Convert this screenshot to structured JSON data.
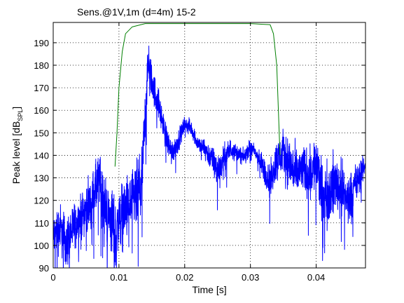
{
  "chart_data": {
    "type": "line",
    "title": "Sens.@1V,1m (d=4m)   15-2",
    "xlabel": "Time [s]",
    "ylabel_main": "Peak level [dB",
    "ylabel_sub": "SPL",
    "ylabel_end": "]",
    "xlim": [
      0,
      0.0475
    ],
    "ylim": [
      90,
      199
    ],
    "grid": true,
    "xticks": [
      0,
      0.01,
      0.02,
      0.03,
      0.04
    ],
    "xtick_labels": [
      "0",
      "0.01",
      "0.02",
      "0.03",
      "0.04"
    ],
    "yticks": [
      90,
      100,
      110,
      120,
      130,
      140,
      150,
      160,
      170,
      180,
      190
    ],
    "ytick_labels": [
      "90",
      "100",
      "110",
      "120",
      "130",
      "140",
      "150",
      "160",
      "170",
      "180",
      "190"
    ],
    "series": [
      {
        "color": "#0000ff",
        "x": [
          0,
          0.001,
          0.002,
          0.003,
          0.004,
          0.005,
          0.006,
          0.007,
          0.008,
          0.009,
          0.0095,
          0.01,
          0.011,
          0.012,
          0.013,
          0.0135,
          0.014,
          0.0145,
          0.015,
          0.016,
          0.017,
          0.018,
          0.019,
          0.02,
          0.021,
          0.022,
          0.023,
          0.024,
          0.025,
          0.026,
          0.027,
          0.028,
          0.029,
          0.03,
          0.031,
          0.032,
          0.033,
          0.034,
          0.035,
          0.036,
          0.037,
          0.038,
          0.039,
          0.04,
          0.041,
          0.042,
          0.043,
          0.044,
          0.045,
          0.046,
          0.047,
          0.0475
        ],
        "y": [
          104,
          108,
          101,
          108,
          112,
          116,
          121,
          129,
          116,
          110,
          103,
          112,
          116,
          119,
          123,
          130,
          160,
          182,
          172,
          163,
          150,
          141,
          146,
          154,
          152,
          145,
          143,
          139,
          133,
          138,
          143,
          141,
          139,
          144,
          140,
          134,
          128,
          138,
          141,
          136,
          131,
          134,
          131,
          137,
          121,
          124,
          128,
          124,
          120,
          127,
          133,
          136
        ],
        "noise": [
          8,
          10,
          10,
          9,
          8,
          9,
          10,
          11,
          12,
          14,
          15,
          13,
          12,
          12,
          14,
          12,
          10,
          8,
          7,
          6,
          5,
          5,
          4,
          3,
          3,
          3,
          4,
          5,
          7,
          6,
          4,
          3,
          3,
          3,
          3,
          5,
          7,
          8,
          9,
          10,
          10,
          9,
          10,
          11,
          12,
          12,
          12,
          11,
          10,
          8,
          5,
          3
        ]
      },
      {
        "color": "#007f00",
        "x": [
          0.0094,
          0.0097,
          0.01,
          0.0105,
          0.011,
          0.012,
          0.014,
          0.02,
          0.03,
          0.033,
          0.0335,
          0.034,
          0.0345
        ],
        "y": [
          135,
          150,
          170,
          186,
          194,
          197,
          198.5,
          198.5,
          198.5,
          198,
          194,
          180,
          140
        ]
      }
    ]
  }
}
